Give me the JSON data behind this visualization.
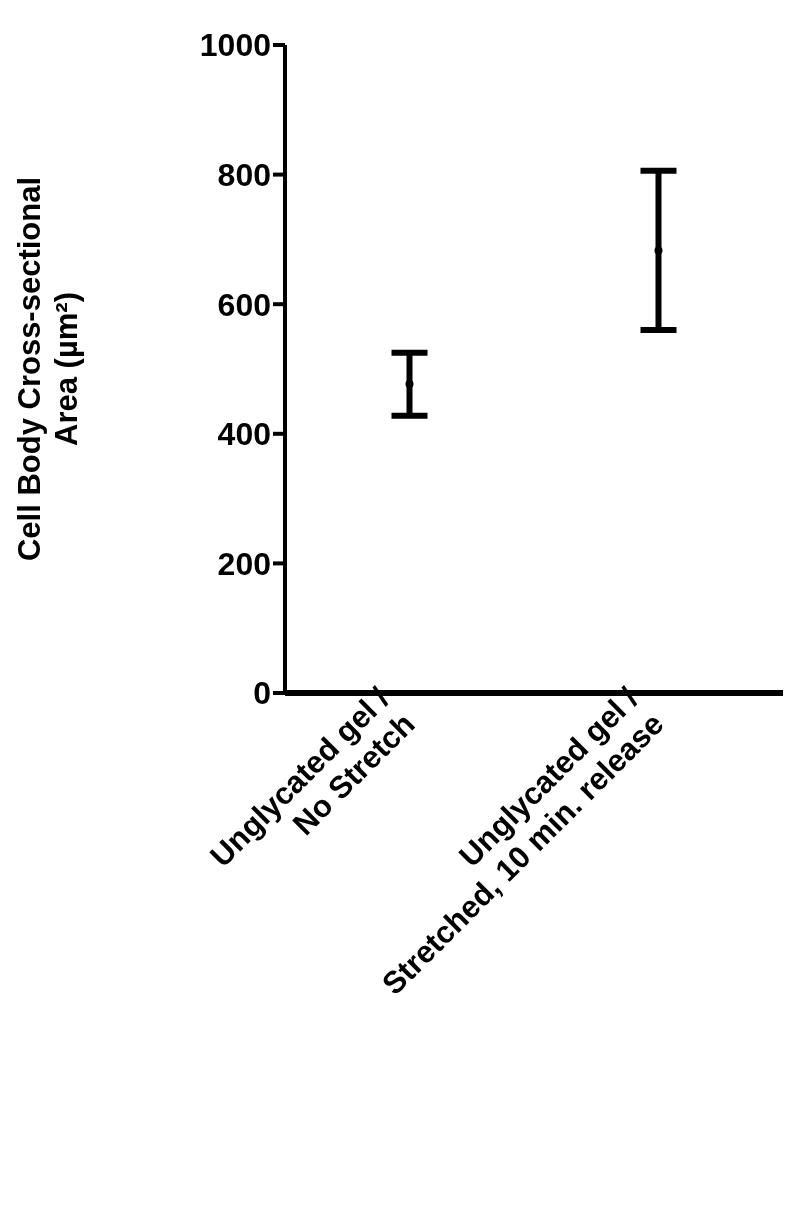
{
  "chart_data": {
    "type": "scatter",
    "ylabel": "Cell Body Cross-sectional Area (µm²)",
    "categories": [
      "Unglycated gel / No Stretch",
      "Unglycated gel / Stretched, 10 min. release"
    ],
    "series": [
      {
        "color": "#000000",
        "values": [
          477,
          683
        ],
        "errors": [
          [
            428,
            525
          ],
          [
            560,
            806
          ]
        ]
      }
    ],
    "ylim": [
      0,
      1000
    ],
    "yticks": [
      0,
      200,
      400,
      600,
      800,
      1000
    ],
    "grid": false,
    "legend": false,
    "marker": "circle"
  }
}
